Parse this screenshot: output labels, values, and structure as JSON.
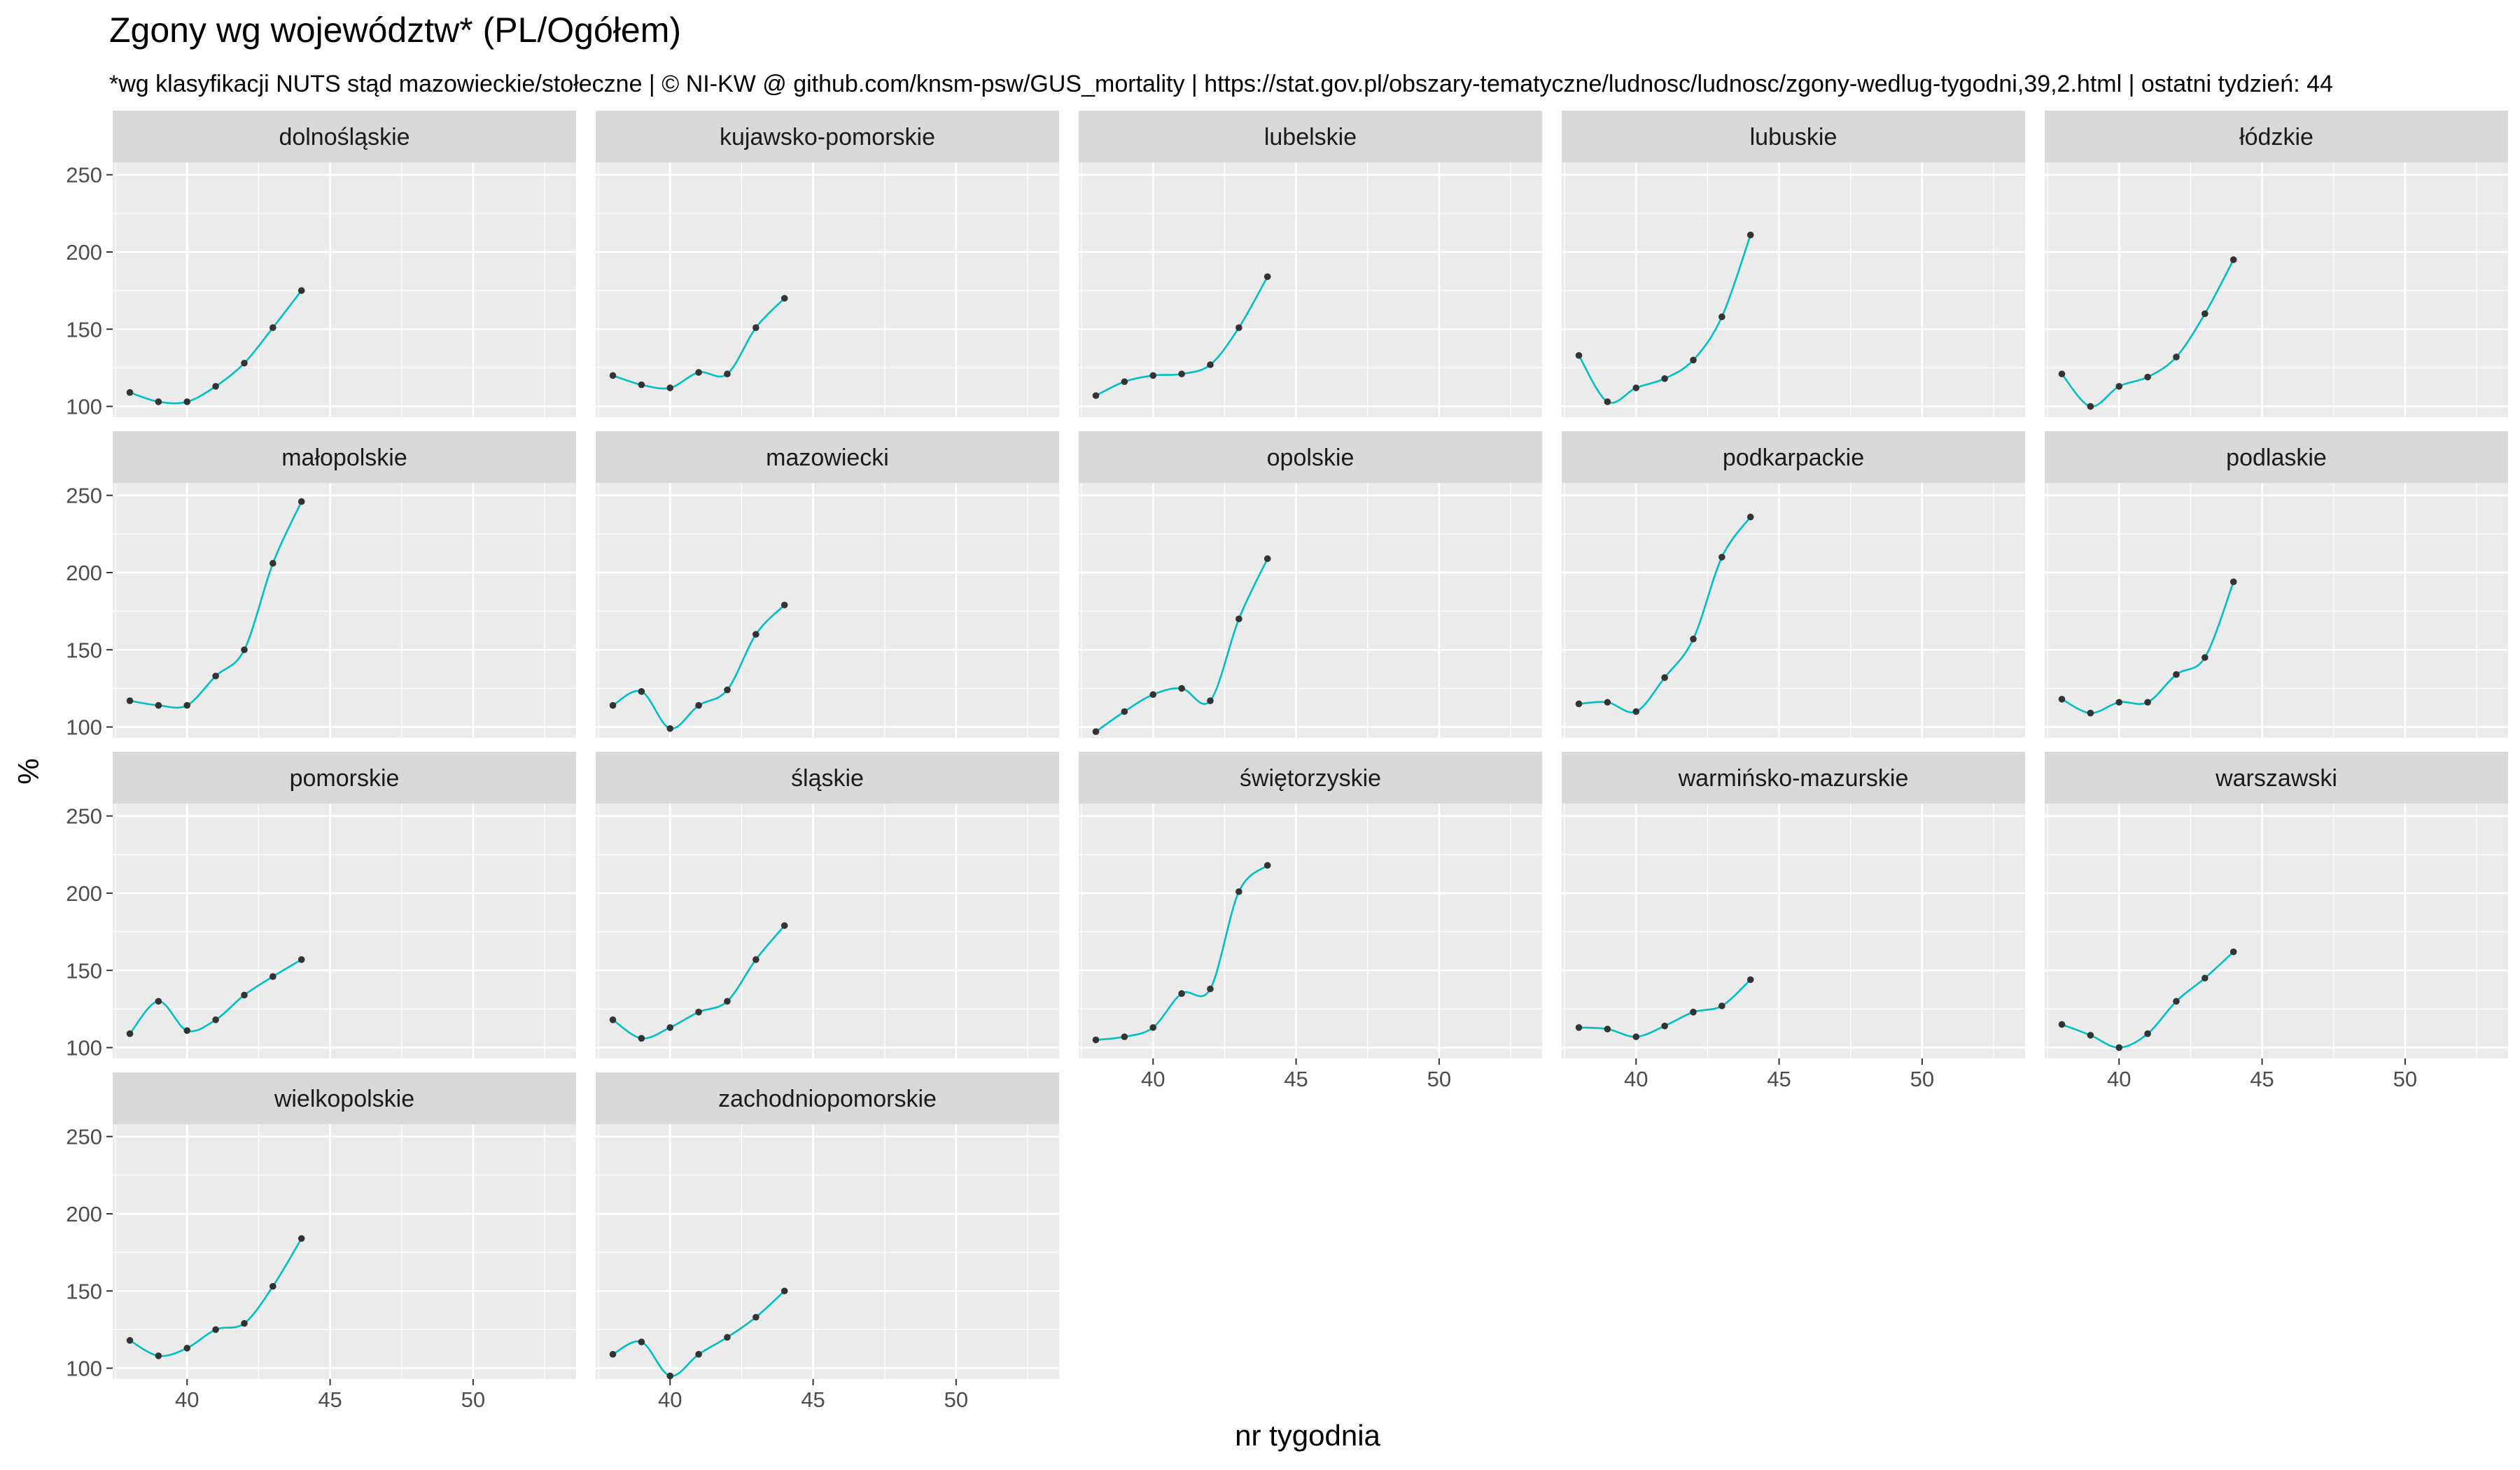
{
  "colors": {
    "panel_bg": "#EBEBEB",
    "strip_bg": "#D9D9D9",
    "grid_major": "#FFFFFF",
    "line": "#00BFC4",
    "point": "#333333",
    "tick": "#333333"
  },
  "chart_data": {
    "type": "line",
    "title": "Zgony wg województw* (PL/Ogółem)",
    "subtitle": "*wg klasyfikacji NUTS stąd mazowieckie/stołeczne | © NI-KW @ github.com/knsm-psw/GUS_mortality | https://stat.gov.pl/obszary-tematyczne/ludnosc/ludnosc/zgony-wedlug-tygodni,39,2.html | ostatni tydzień: 44",
    "xlabel": "nr tygodnia",
    "ylabel": "%",
    "xlim": [
      37.4,
      53.6
    ],
    "ylim": [
      93,
      258
    ],
    "x_ticks": [
      40,
      45,
      50
    ],
    "x_tick_labels": [
      "40",
      "45",
      "50"
    ],
    "y_ticks": [
      100,
      150,
      200,
      250
    ],
    "y_tick_labels": [
      "100",
      "150",
      "200",
      "250"
    ],
    "grid": true,
    "facet_layout": {
      "rows": 4,
      "cols": 5
    },
    "x": [
      38,
      39,
      40,
      41,
      42,
      43,
      44
    ],
    "series": [
      {
        "name": "dolnośląskie",
        "values": [
          109,
          103,
          103,
          113,
          128,
          151,
          175
        ]
      },
      {
        "name": "kujawsko-pomorskie",
        "values": [
          120,
          114,
          112,
          122,
          121,
          151,
          170
        ]
      },
      {
        "name": "lubelskie",
        "values": [
          107,
          116,
          120,
          121,
          127,
          151,
          184
        ]
      },
      {
        "name": "lubuskie",
        "values": [
          133,
          103,
          112,
          118,
          130,
          158,
          211
        ]
      },
      {
        "name": "łódzkie",
        "values": [
          121,
          100,
          113,
          119,
          132,
          160,
          195
        ]
      },
      {
        "name": "małopolskie",
        "values": [
          117,
          114,
          114,
          133,
          150,
          206,
          246
        ]
      },
      {
        "name": "mazowiecki",
        "values": [
          114,
          123,
          99,
          114,
          124,
          160,
          179
        ]
      },
      {
        "name": "opolskie",
        "values": [
          97,
          110,
          121,
          125,
          117,
          170,
          209
        ]
      },
      {
        "name": "podkarpackie",
        "values": [
          115,
          116,
          110,
          132,
          157,
          210,
          236
        ]
      },
      {
        "name": "podlaskie",
        "values": [
          118,
          109,
          116,
          116,
          134,
          145,
          194
        ]
      },
      {
        "name": "pomorskie",
        "values": [
          109,
          130,
          111,
          118,
          134,
          146,
          157
        ]
      },
      {
        "name": "śląskie",
        "values": [
          118,
          106,
          113,
          123,
          130,
          157,
          179
        ]
      },
      {
        "name": "świętorzyskie",
        "values": [
          105,
          107,
          113,
          135,
          138,
          201,
          218
        ]
      },
      {
        "name": "warmińsko-mazurskie",
        "values": [
          113,
          112,
          107,
          114,
          123,
          127,
          144
        ]
      },
      {
        "name": "warszawski",
        "values": [
          115,
          108,
          100,
          109,
          130,
          145,
          162
        ]
      },
      {
        "name": "wielkopolskie",
        "values": [
          118,
          108,
          113,
          125,
          129,
          153,
          184
        ]
      },
      {
        "name": "zachodniopomorskie",
        "values": [
          109,
          117,
          95,
          109,
          120,
          133,
          150
        ]
      }
    ]
  }
}
